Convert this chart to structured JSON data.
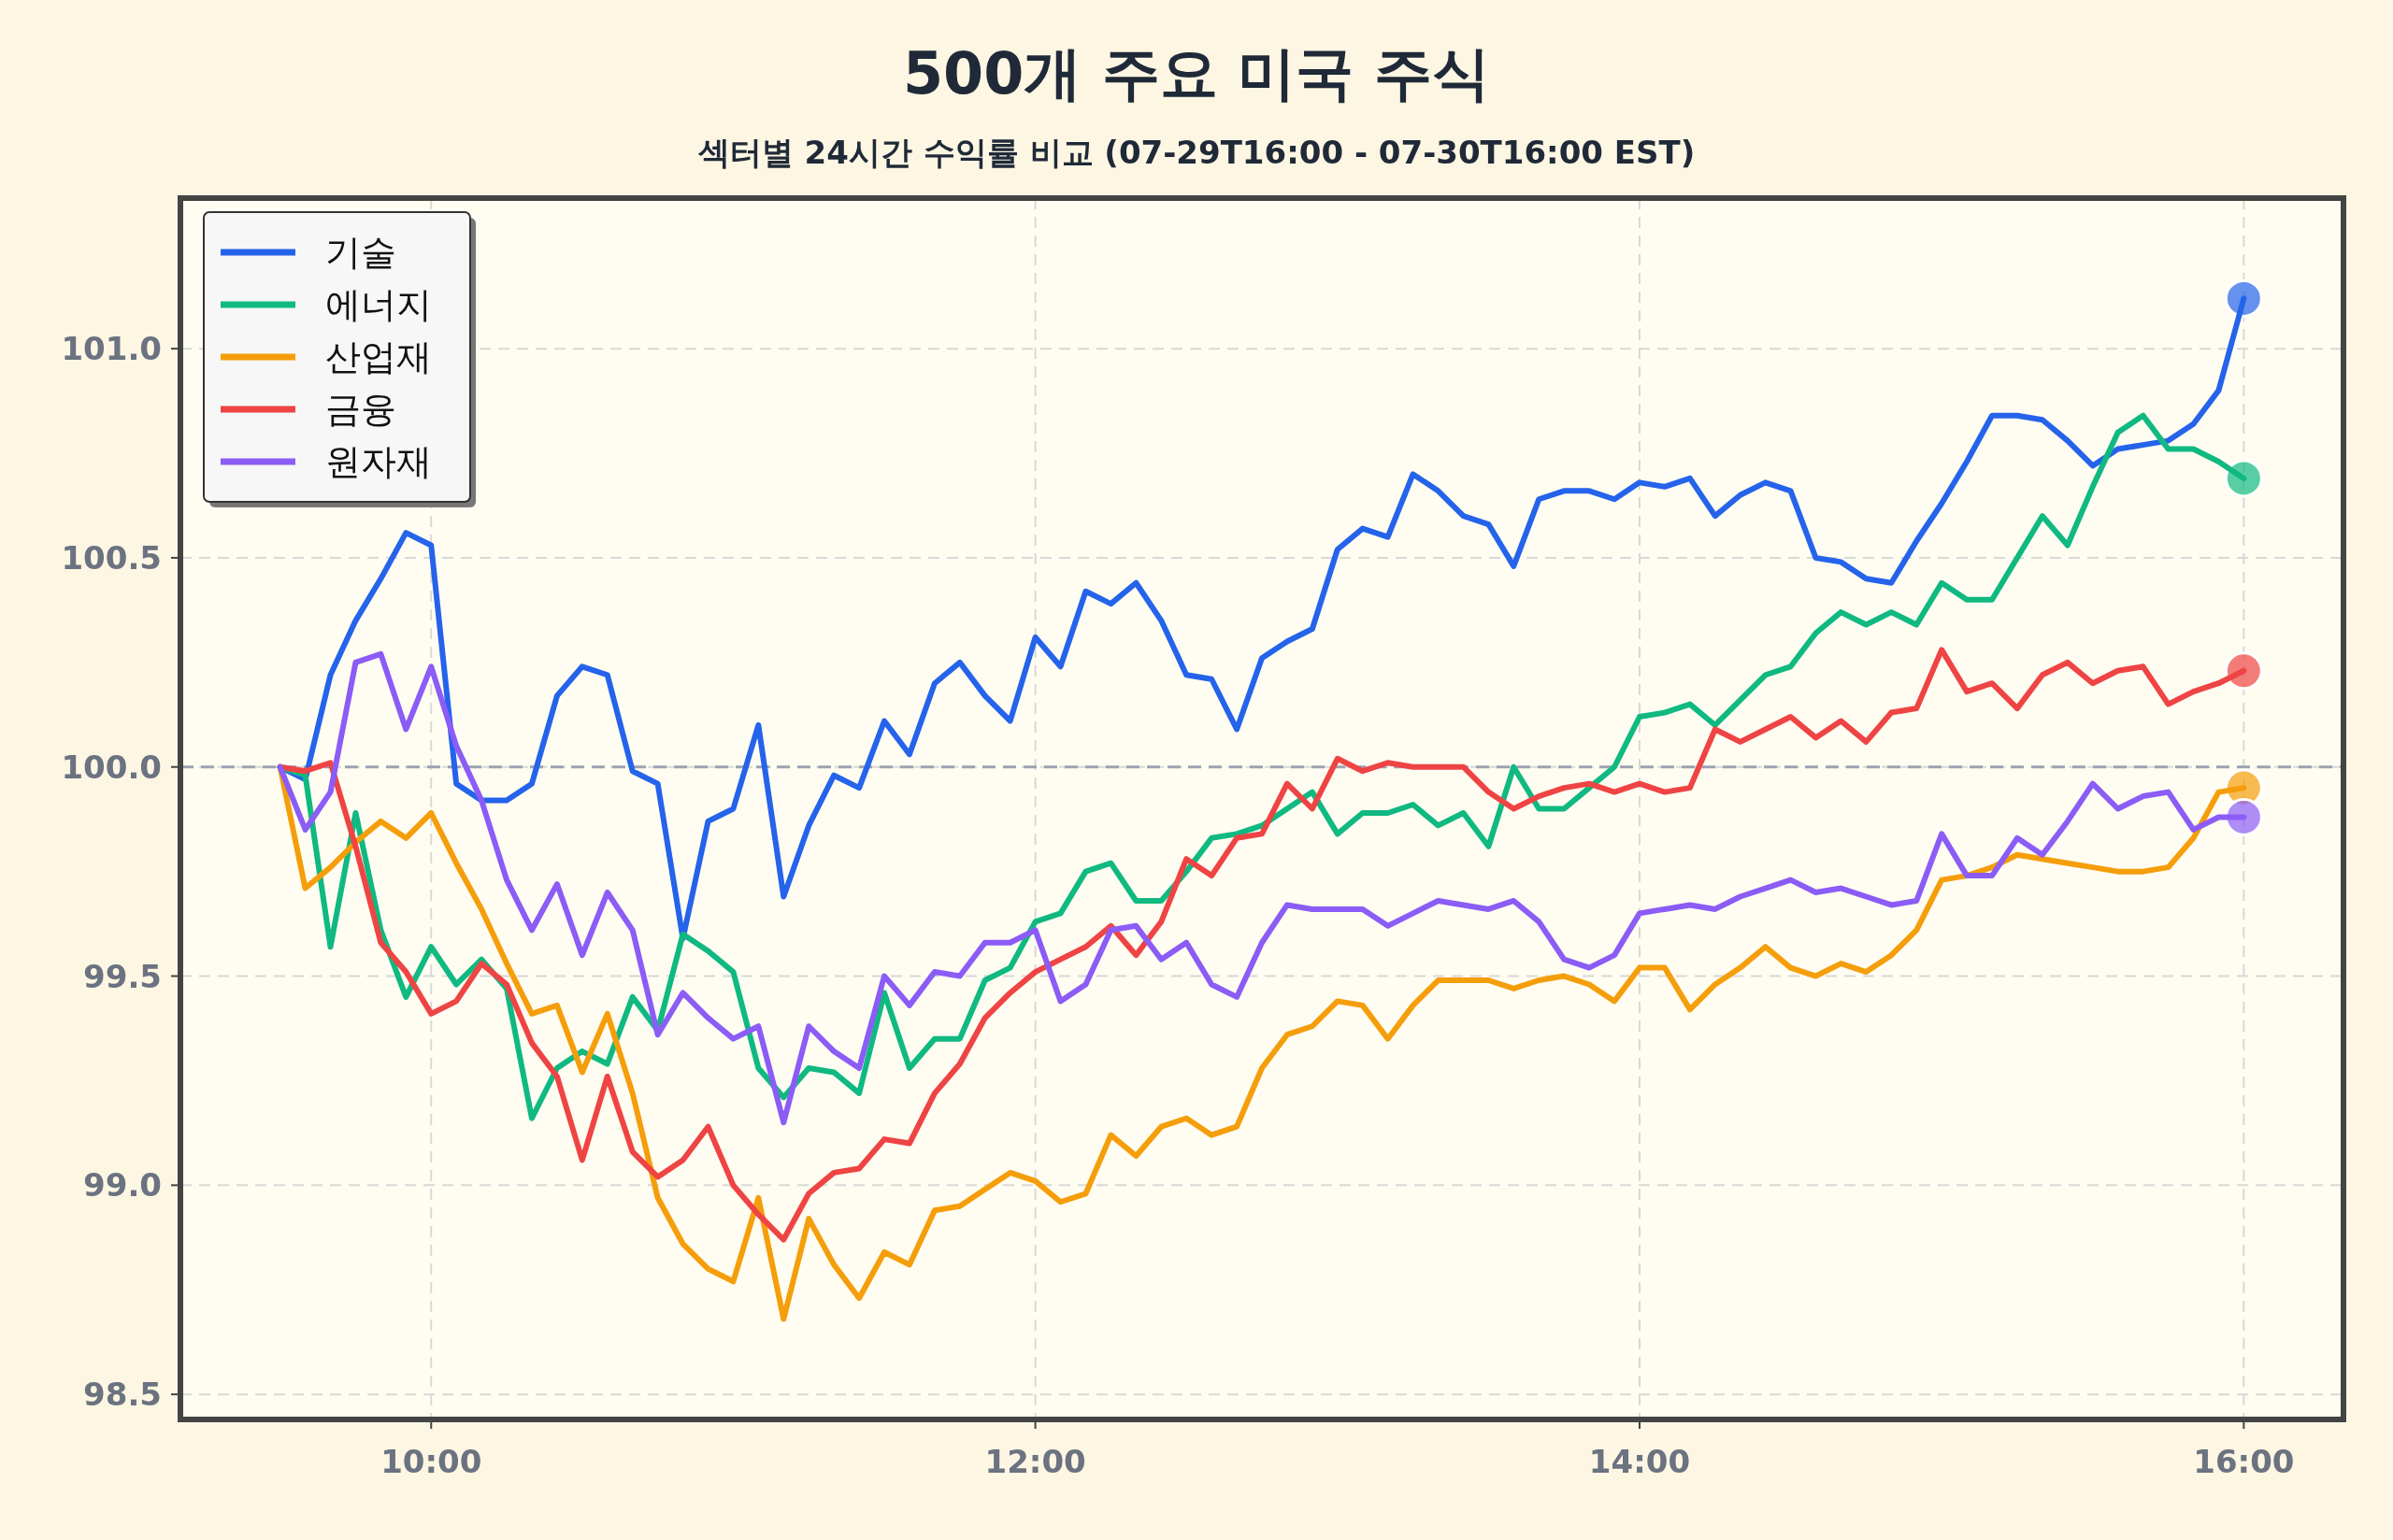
{
  "chart_data": {
    "type": "line",
    "title": "500개 주요 미국 주식",
    "subtitle": "섹터별 24시간 수익률 비교 (07-29T16:00 - 07-30T16:00 EST)",
    "x": [
      9.5,
      9.5833,
      9.6667,
      9.75,
      9.8333,
      9.9167,
      10,
      10.0833,
      10.1667,
      10.25,
      10.3333,
      10.4167,
      10.5,
      10.5833,
      10.6667,
      10.75,
      10.8333,
      10.9167,
      11,
      11.0833,
      11.1667,
      11.25,
      11.3333,
      11.4167,
      11.5,
      11.5833,
      11.6667,
      11.75,
      11.8333,
      11.9167,
      12,
      12.0833,
      12.1667,
      12.25,
      12.3333,
      12.4167,
      12.5,
      12.5833,
      12.6667,
      12.75,
      12.8333,
      12.9167,
      13,
      13.0833,
      13.1667,
      13.25,
      13.3333,
      13.4167,
      13.5,
      13.5833,
      13.6667,
      13.75,
      13.8333,
      13.9167,
      14,
      14.0833,
      14.1667,
      14.25,
      14.3333,
      14.4167,
      14.5,
      14.5833,
      14.6667,
      14.75,
      14.8333,
      14.9167,
      15,
      15.0833,
      15.1667,
      15.25,
      15.3333,
      15.4167,
      15.5,
      15.5833,
      15.6667,
      15.75,
      15.8333,
      15.9167,
      16
    ],
    "series": [
      {
        "name": "기술",
        "color": "#2563eb",
        "marker": "none",
        "values": [
          100.0,
          99.97,
          100.22,
          100.35,
          100.45,
          100.56,
          100.53,
          99.96,
          99.92,
          99.92,
          99.96,
          100.17,
          100.24,
          100.22,
          99.99,
          99.96,
          99.59,
          99.87,
          99.9,
          100.1,
          99.69,
          99.86,
          99.98,
          99.95,
          100.11,
          100.03,
          100.2,
          100.25,
          100.17,
          100.11,
          100.31,
          100.24,
          100.42,
          100.39,
          100.44,
          100.35,
          100.22,
          100.21,
          100.09,
          100.26,
          100.3,
          100.33,
          100.52,
          100.57,
          100.55,
          100.7,
          100.66,
          100.6,
          100.58,
          100.48,
          100.64,
          100.66,
          100.66,
          100.64,
          100.68,
          100.67,
          100.69,
          100.6,
          100.65,
          100.68,
          100.66,
          100.5,
          100.49,
          100.45,
          100.44,
          100.54,
          100.63,
          100.73,
          100.84,
          100.84,
          100.83,
          100.78,
          100.72,
          100.76,
          100.77,
          100.78,
          100.82,
          100.9,
          101.12
        ]
      },
      {
        "name": "에너지",
        "color": "#10b981",
        "marker": "none",
        "values": [
          100.0,
          99.98,
          99.57,
          99.89,
          99.61,
          99.45,
          99.57,
          99.48,
          99.54,
          99.47,
          99.16,
          99.28,
          99.32,
          99.29,
          99.45,
          99.37,
          99.6,
          99.56,
          99.51,
          99.28,
          99.21,
          99.28,
          99.27,
          99.22,
          99.46,
          99.28,
          99.35,
          99.35,
          99.49,
          99.52,
          99.63,
          99.65,
          99.75,
          99.77,
          99.68,
          99.68,
          99.75,
          99.83,
          99.84,
          99.86,
          99.9,
          99.94,
          99.84,
          99.89,
          99.89,
          99.91,
          99.86,
          99.89,
          99.81,
          100.0,
          99.9,
          99.9,
          99.95,
          100.0,
          100.12,
          100.13,
          100.15,
          100.1,
          100.16,
          100.22,
          100.24,
          100.32,
          100.37,
          100.34,
          100.37,
          100.34,
          100.44,
          100.4,
          100.4,
          100.5,
          100.6,
          100.53,
          100.67,
          100.8,
          100.84,
          100.76,
          100.76,
          100.73,
          100.69
        ]
      },
      {
        "name": "산업재",
        "color": "#f59e0b",
        "marker": "none",
        "values": [
          100.0,
          99.71,
          99.76,
          99.82,
          99.87,
          99.83,
          99.89,
          99.77,
          99.66,
          99.53,
          99.41,
          99.43,
          99.27,
          99.41,
          99.22,
          98.97,
          98.86,
          98.8,
          98.77,
          98.97,
          98.68,
          98.92,
          98.81,
          98.73,
          98.84,
          98.81,
          98.94,
          98.95,
          98.99,
          99.03,
          99.01,
          98.96,
          98.98,
          99.12,
          99.07,
          99.14,
          99.16,
          99.12,
          99.14,
          99.28,
          99.36,
          99.38,
          99.44,
          99.43,
          99.35,
          99.43,
          99.49,
          99.49,
          99.49,
          99.47,
          99.49,
          99.5,
          99.48,
          99.44,
          99.52,
          99.52,
          99.42,
          99.48,
          99.52,
          99.57,
          99.52,
          99.5,
          99.53,
          99.51,
          99.55,
          99.61,
          99.73,
          99.74,
          99.76,
          99.79,
          99.78,
          99.77,
          99.76,
          99.75,
          99.75,
          99.76,
          99.83,
          99.94,
          99.95
        ]
      },
      {
        "name": "금융",
        "color": "#ef4444",
        "marker": "none",
        "values": [
          100.0,
          99.99,
          100.01,
          99.81,
          99.58,
          99.51,
          99.41,
          99.44,
          99.53,
          99.48,
          99.34,
          99.26,
          99.06,
          99.26,
          99.08,
          99.02,
          99.06,
          99.14,
          99.0,
          98.93,
          98.87,
          98.98,
          99.03,
          99.04,
          99.11,
          99.1,
          99.22,
          99.29,
          99.4,
          99.46,
          99.51,
          99.54,
          99.57,
          99.62,
          99.55,
          99.63,
          99.78,
          99.74,
          99.83,
          99.84,
          99.96,
          99.9,
          100.02,
          99.99,
          100.01,
          100.0,
          100.0,
          100.0,
          99.94,
          99.9,
          99.93,
          99.95,
          99.96,
          99.94,
          99.96,
          99.94,
          99.95,
          100.09,
          100.06,
          100.09,
          100.12,
          100.07,
          100.11,
          100.06,
          100.13,
          100.14,
          100.28,
          100.18,
          100.2,
          100.14,
          100.22,
          100.25,
          100.2,
          100.23,
          100.24,
          100.15,
          100.18,
          100.2,
          100.23
        ]
      },
      {
        "name": "원자재",
        "color": "#8b5cf6",
        "marker": "none",
        "values": [
          100.0,
          99.85,
          99.94,
          100.25,
          100.27,
          100.09,
          100.24,
          100.05,
          99.92,
          99.73,
          99.61,
          99.72,
          99.55,
          99.7,
          99.61,
          99.36,
          99.46,
          99.4,
          99.35,
          99.38,
          99.15,
          99.38,
          99.32,
          99.28,
          99.5,
          99.43,
          99.51,
          99.5,
          99.58,
          99.58,
          99.61,
          99.44,
          99.48,
          99.61,
          99.62,
          99.54,
          99.58,
          99.48,
          99.45,
          99.58,
          99.67,
          99.66,
          99.66,
          99.66,
          99.62,
          99.65,
          99.68,
          99.67,
          99.66,
          99.68,
          99.63,
          99.54,
          99.52,
          99.55,
          99.65,
          99.66,
          99.67,
          99.66,
          99.69,
          99.71,
          99.73,
          99.7,
          99.71,
          99.69,
          99.67,
          99.68,
          99.84,
          99.74,
          99.74,
          99.83,
          99.79,
          99.87,
          99.96,
          99.9,
          99.93,
          99.94,
          99.85,
          99.88,
          99.88
        ]
      },
      {
        "type": "scatter",
        "marker": "circle",
        "color": "#2563eb",
        "values": [
          null,
          null,
          null,
          null,
          null,
          null,
          null,
          null,
          null,
          null,
          null,
          null,
          null,
          null,
          null,
          null,
          null,
          null,
          null,
          null,
          null,
          null,
          null,
          null,
          null,
          null,
          null,
          null,
          null,
          null,
          null,
          null,
          null,
          null,
          null,
          null,
          null,
          null,
          null,
          null,
          null,
          null,
          null,
          null,
          null,
          null,
          null,
          null,
          null,
          null,
          null,
          null,
          null,
          null,
          null,
          null,
          null,
          null,
          null,
          null,
          null,
          null,
          null,
          null,
          null,
          null,
          null,
          null,
          null,
          null,
          null,
          null,
          null,
          null,
          null,
          null,
          null,
          null,
          101.12
        ]
      },
      {
        "type": "scatter",
        "marker": "circle",
        "color": "#10b981",
        "values": [
          null,
          null,
          null,
          null,
          null,
          null,
          null,
          null,
          null,
          null,
          null,
          null,
          null,
          null,
          null,
          null,
          null,
          null,
          null,
          null,
          null,
          null,
          null,
          null,
          null,
          null,
          null,
          null,
          null,
          null,
          null,
          null,
          null,
          null,
          null,
          null,
          null,
          null,
          null,
          null,
          null,
          null,
          null,
          null,
          null,
          null,
          null,
          null,
          null,
          null,
          null,
          null,
          null,
          null,
          null,
          null,
          null,
          null,
          null,
          null,
          null,
          null,
          null,
          null,
          null,
          null,
          null,
          null,
          null,
          null,
          null,
          null,
          null,
          null,
          null,
          null,
          null,
          null,
          100.69
        ]
      },
      {
        "type": "scatter",
        "marker": "circle",
        "color": "#f59e0b",
        "values": [
          null,
          null,
          null,
          null,
          null,
          null,
          null,
          null,
          null,
          null,
          null,
          null,
          null,
          null,
          null,
          null,
          null,
          null,
          null,
          null,
          null,
          null,
          null,
          null,
          null,
          null,
          null,
          null,
          null,
          null,
          null,
          null,
          null,
          null,
          null,
          null,
          null,
          null,
          null,
          null,
          null,
          null,
          null,
          null,
          null,
          null,
          null,
          null,
          null,
          null,
          null,
          null,
          null,
          null,
          null,
          null,
          null,
          null,
          null,
          null,
          null,
          null,
          null,
          null,
          null,
          null,
          null,
          null,
          null,
          null,
          null,
          null,
          null,
          null,
          null,
          null,
          null,
          null,
          99.95
        ]
      },
      {
        "type": "scatter",
        "marker": "circle",
        "color": "#ef4444",
        "values": [
          null,
          null,
          null,
          null,
          null,
          null,
          null,
          null,
          null,
          null,
          null,
          null,
          null,
          null,
          null,
          null,
          null,
          null,
          null,
          null,
          null,
          null,
          null,
          null,
          null,
          null,
          null,
          null,
          null,
          null,
          null,
          null,
          null,
          null,
          null,
          null,
          null,
          null,
          null,
          null,
          null,
          null,
          null,
          null,
          null,
          null,
          null,
          null,
          null,
          null,
          null,
          null,
          null,
          null,
          null,
          null,
          null,
          null,
          null,
          null,
          null,
          null,
          null,
          null,
          null,
          null,
          null,
          null,
          null,
          null,
          null,
          null,
          null,
          null,
          null,
          null,
          null,
          null,
          100.23
        ]
      },
      {
        "type": "scatter",
        "marker": "circle",
        "color": "#8b5cf6",
        "values": [
          null,
          null,
          null,
          null,
          null,
          null,
          null,
          null,
          null,
          null,
          null,
          null,
          null,
          null,
          null,
          null,
          null,
          null,
          null,
          null,
          null,
          null,
          null,
          null,
          null,
          null,
          null,
          null,
          null,
          null,
          null,
          null,
          null,
          null,
          null,
          null,
          null,
          null,
          null,
          null,
          null,
          null,
          null,
          null,
          null,
          null,
          null,
          null,
          null,
          null,
          null,
          null,
          null,
          null,
          null,
          null,
          null,
          null,
          null,
          null,
          null,
          null,
          null,
          null,
          null,
          null,
          null,
          null,
          null,
          null,
          null,
          null,
          null,
          null,
          null,
          null,
          null,
          null,
          99.88
        ]
      }
    ],
    "xlim": [
      9.17,
      16.33
    ],
    "ylim": [
      98.44,
      101.36
    ],
    "xticks": [
      {
        "value": 10,
        "label": "10:00"
      },
      {
        "value": 12,
        "label": "12:00"
      },
      {
        "value": 14,
        "label": "14:00"
      },
      {
        "value": 16,
        "label": "16:00"
      }
    ],
    "yticks": [
      98.5,
      {
        "value": 99,
        "label": "99.0"
      },
      99.5,
      {
        "value": 100,
        "label": "100.0"
      },
      100.5,
      {
        "value": 101,
        "label": "101.0"
      }
    ],
    "ref_lines": [
      {
        "axis": "y",
        "value": 100,
        "color": "#9ca3af",
        "line_style": "dashed"
      }
    ],
    "grid": true,
    "legend": "top left"
  }
}
